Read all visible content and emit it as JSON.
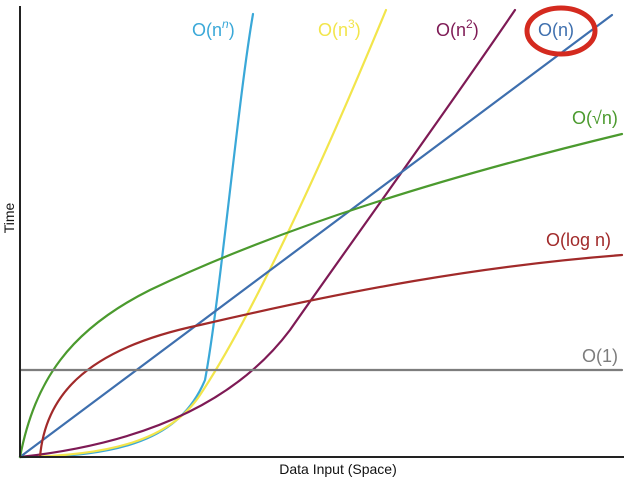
{
  "chart_data": {
    "type": "line",
    "xlabel": "Data Input (Space)",
    "ylabel": "Time",
    "grid": false,
    "colors": {
      "axis": "#222222",
      "highlight_circle": "#d42a1f"
    },
    "series": [
      {
        "name": "O(n",
        "sup": "n",
        "sup_italic": true,
        "color": "#3aa8d8",
        "key": "nn"
      },
      {
        "name": "O(n",
        "sup": "3",
        "sup_italic": false,
        "color": "#f2e54b",
        "key": "n3"
      },
      {
        "name": "O(n",
        "sup": "2",
        "sup_italic": false,
        "color": "#7e1a55",
        "key": "n2"
      },
      {
        "name": "O(n)",
        "sup": "",
        "sup_italic": false,
        "color": "#3e6fae",
        "key": "n",
        "highlighted": true
      },
      {
        "name": "O(√n)",
        "sup": "",
        "sup_italic": false,
        "color": "#4b9a2e",
        "key": "sqrtn"
      },
      {
        "name": "O(log n)",
        "sup": "",
        "sup_italic": false,
        "color": "#a12a2a",
        "key": "logn"
      },
      {
        "name": "O(1)",
        "sup": "",
        "sup_italic": false,
        "color": "#7d7d7d",
        "key": "const"
      }
    ]
  }
}
